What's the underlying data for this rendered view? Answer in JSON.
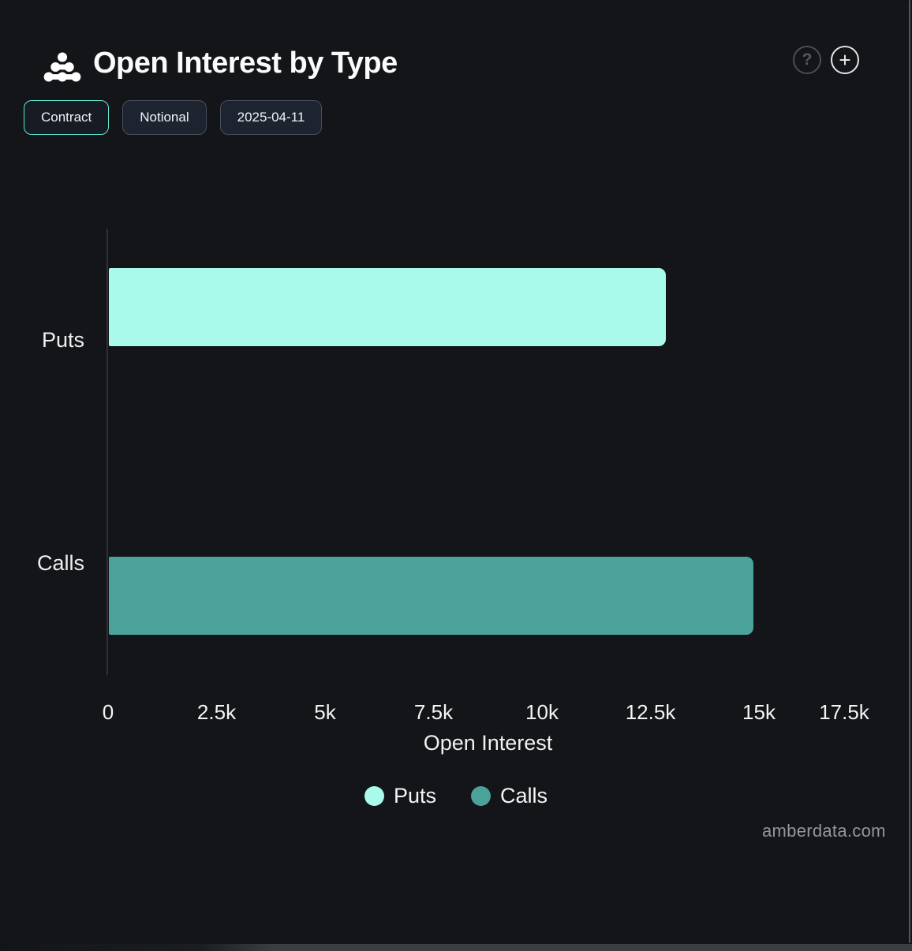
{
  "header": {
    "title": "Open Interest by Type",
    "help_label": "?",
    "add_label": "+"
  },
  "toolbar": {
    "buttons": [
      {
        "label": "Contract",
        "active": true
      },
      {
        "label": "Notional",
        "active": false
      },
      {
        "label": "2025-04-11",
        "active": false
      }
    ]
  },
  "chart_data": {
    "type": "bar",
    "orientation": "horizontal",
    "title": "Open Interest by Type",
    "categories": [
      "Puts",
      "Calls"
    ],
    "values": [
      12830,
      14860
    ],
    "colors": [
      "#aafaec",
      "#4aa29a"
    ],
    "xlabel": "Open Interest",
    "xlim": [
      0,
      17500
    ],
    "xticks": [
      0,
      2500,
      5000,
      7500,
      10000,
      12500,
      15000,
      17500
    ],
    "xtick_labels": [
      "0",
      "2.5k",
      "5k",
      "7.5k",
      "10k",
      "12.5k",
      "15k",
      "17.5k"
    ],
    "legend": [
      {
        "label": "Puts",
        "color": "#aafaec"
      },
      {
        "label": "Calls",
        "color": "#4aa29a"
      }
    ],
    "legend_position": "bottom",
    "grid": false,
    "background": "#141518"
  },
  "footer": {
    "watermark": "amberdata.com"
  }
}
